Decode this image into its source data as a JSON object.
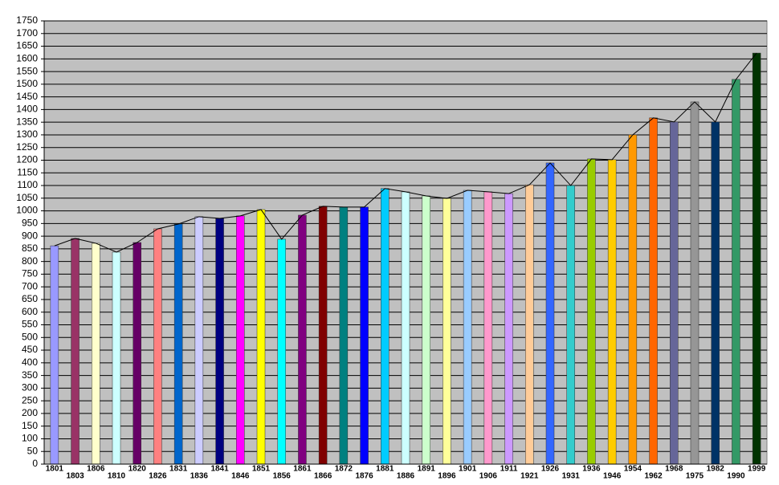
{
  "chart_data": {
    "type": "bar",
    "categories": [
      "1801",
      "1803",
      "1806",
      "1810",
      "1820",
      "1826",
      "1831",
      "1836",
      "1841",
      "1846",
      "1851",
      "1856",
      "1861",
      "1866",
      "1872",
      "1876",
      "1881",
      "1886",
      "1891",
      "1896",
      "1901",
      "1906",
      "1911",
      "1921",
      "1926",
      "1931",
      "1936",
      "1946",
      "1954",
      "1962",
      "1968",
      "1975",
      "1982",
      "1990",
      "1999"
    ],
    "values": [
      862,
      891,
      872,
      837,
      875,
      929,
      948,
      977,
      970,
      980,
      1005,
      888,
      983,
      1018,
      1015,
      1015,
      1088,
      1075,
      1059,
      1049,
      1081,
      1075,
      1068,
      1103,
      1189,
      1100,
      1205,
      1202,
      1300,
      1367,
      1351,
      1430,
      1351,
      1519,
      1623
    ],
    "colors": [
      "#9999ff",
      "#993366",
      "#ffffcc",
      "#ccffff",
      "#660066",
      "#ff8080",
      "#0066cc",
      "#ccccff",
      "#000080",
      "#ff00ff",
      "#ffff00",
      "#00ffff",
      "#800080",
      "#800000",
      "#008080",
      "#0000ff",
      "#00ccff",
      "#ccffff",
      "#ccffcc",
      "#ffff99",
      "#99ccff",
      "#ff99cc",
      "#cc99ff",
      "#ffcc99",
      "#3366ff",
      "#33cccc",
      "#99cc00",
      "#ffcc00",
      "#ff9900",
      "#ff6600",
      "#666699",
      "#969696",
      "#003366",
      "#339966",
      "#003300"
    ],
    "line_color": "#000000",
    "ylim": [
      0,
      1750
    ],
    "yticks": [
      0,
      50,
      100,
      150,
      200,
      250,
      300,
      350,
      400,
      450,
      500,
      550,
      600,
      650,
      700,
      750,
      800,
      850,
      900,
      950,
      1000,
      1050,
      1100,
      1150,
      1200,
      1250,
      1300,
      1350,
      1400,
      1450,
      1500,
      1550,
      1600,
      1650,
      1700,
      1750
    ],
    "grid": true
  }
}
